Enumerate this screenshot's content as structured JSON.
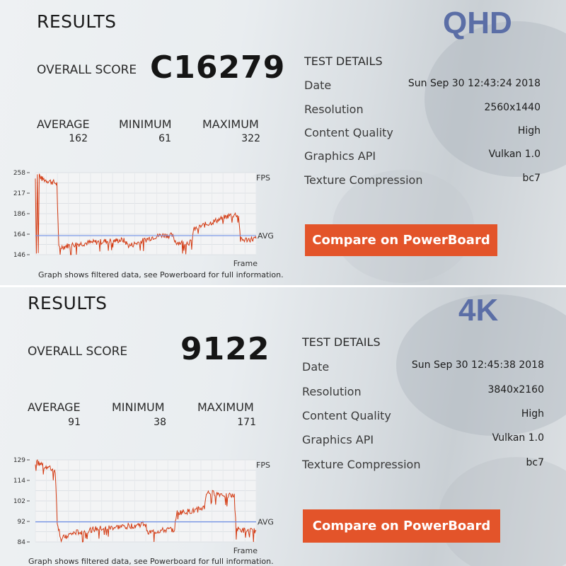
{
  "panels": [
    {
      "id": "qhd",
      "badge": "QHD",
      "results_title": "RESULTS",
      "overall_label": "OVERALL SCORE",
      "overall_score": "C16279",
      "stats": [
        {
          "label": "AVERAGE",
          "value": "162"
        },
        {
          "label": "MINIMUM",
          "value": "61"
        },
        {
          "label": "MAXIMUM",
          "value": "322"
        }
      ],
      "test_details_title": "TEST DETAILS",
      "details": [
        {
          "key": "Date",
          "value": "Sun Sep 30 12:43:24 2018"
        },
        {
          "key": "Resolution",
          "value": "2560x1440"
        },
        {
          "key": "Content Quality",
          "value": "High"
        },
        {
          "key": "Graphics API",
          "value": "Vulkan 1.0"
        },
        {
          "key": "Texture Compression",
          "value": "bc7"
        }
      ],
      "compare_button": "Compare on PowerBoard",
      "graph": {
        "fps_label": "FPS",
        "avg_label": "AVG",
        "frame_label": "Frame",
        "yticks": [
          "258",
          "217",
          "186",
          "164",
          "146"
        ],
        "ylim": [
          146,
          258
        ],
        "avg": 172,
        "note": "Graph shows filtered data, see Powerboard for full information.",
        "profile": [
          [
            0,
            250
          ],
          [
            0.5,
            148
          ],
          [
            1,
            255
          ],
          [
            1.5,
            147
          ],
          [
            2,
            255
          ],
          [
            3,
            250
          ],
          [
            5,
            248
          ],
          [
            9,
            245
          ],
          [
            11,
            243
          ],
          [
            12,
            155
          ],
          [
            14,
            157
          ],
          [
            20,
            160
          ],
          [
            30,
            163
          ],
          [
            40,
            165
          ],
          [
            45,
            166
          ],
          [
            48,
            158
          ],
          [
            50,
            160
          ],
          [
            55,
            165
          ],
          [
            60,
            170
          ],
          [
            65,
            173
          ],
          [
            70,
            172
          ],
          [
            72,
            163
          ],
          [
            76,
            162
          ],
          [
            80,
            163
          ],
          [
            81,
            180
          ],
          [
            85,
            185
          ],
          [
            90,
            190
          ],
          [
            95,
            195
          ],
          [
            100,
            200
          ],
          [
            104,
            201
          ],
          [
            105,
            166
          ],
          [
            110,
            167
          ],
          [
            113,
            168
          ]
        ]
      },
      "colors": {
        "accent": "#e3542a",
        "badge": "#5b6ea6",
        "line": "#d33a12",
        "avg_line": "#6f8fe6"
      }
    },
    {
      "id": "4k",
      "badge": "4K",
      "results_title": "RESULTS",
      "overall_label": "OVERALL SCORE",
      "overall_score": "9122",
      "stats": [
        {
          "label": "AVERAGE",
          "value": "91"
        },
        {
          "label": "MINIMUM",
          "value": "38"
        },
        {
          "label": "MAXIMUM",
          "value": "171"
        }
      ],
      "test_details_title": "TEST DETAILS",
      "details": [
        {
          "key": "Date",
          "value": "Sun Sep 30 12:45:38 2018"
        },
        {
          "key": "Resolution",
          "value": "3840x2160"
        },
        {
          "key": "Content Quality",
          "value": "High"
        },
        {
          "key": "Graphics API",
          "value": "Vulkan 1.0"
        },
        {
          "key": "Texture Compression",
          "value": "bc7"
        }
      ],
      "compare_button": "Compare on PowerBoard",
      "graph": {
        "fps_label": "FPS",
        "avg_label": "AVG",
        "frame_label": "Frame",
        "yticks": [
          "129",
          "114",
          "102",
          "92",
          "84"
        ],
        "ylim": [
          84,
          129
        ],
        "avg": 95,
        "note": "Graph shows filtered data, see Powerboard for full information.",
        "profile": [
          [
            0,
            128
          ],
          [
            2,
            127
          ],
          [
            6,
            125
          ],
          [
            10,
            123
          ],
          [
            11,
            95
          ],
          [
            13,
            85
          ],
          [
            15,
            87
          ],
          [
            20,
            89
          ],
          [
            30,
            91
          ],
          [
            40,
            92
          ],
          [
            50,
            93
          ],
          [
            55,
            94
          ],
          [
            57,
            89
          ],
          [
            62,
            90
          ],
          [
            70,
            91
          ],
          [
            71,
            100
          ],
          [
            80,
            101
          ],
          [
            85,
            103
          ],
          [
            86,
            111
          ],
          [
            95,
            110
          ],
          [
            100,
            109
          ],
          [
            101,
            91
          ],
          [
            106,
            90
          ],
          [
            111,
            90
          ]
        ]
      },
      "colors": {
        "accent": "#e3542a",
        "badge": "#5b6ea6",
        "line": "#d33a12",
        "avg_line": "#6f8fe6"
      }
    }
  ]
}
